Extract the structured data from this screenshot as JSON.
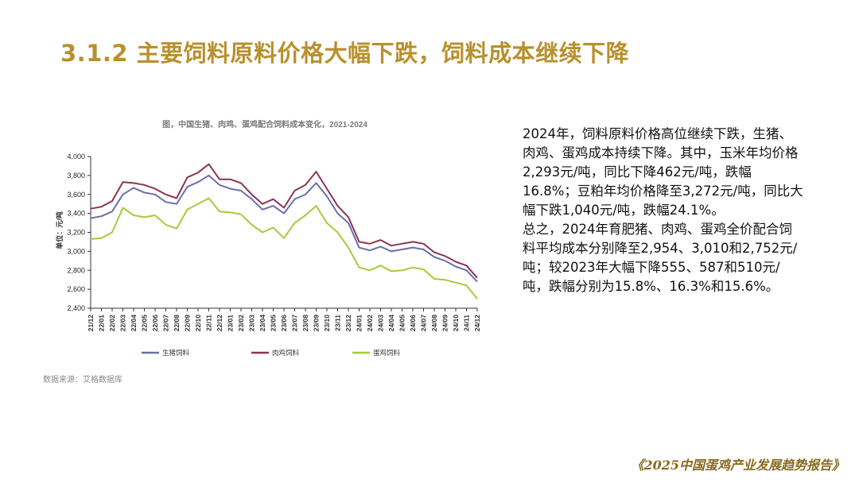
{
  "page": {
    "title": "3.1.2 主要饲料原料价格大幅下跌，饲料成本继续下降",
    "source": "数据来源：艾格数据库",
    "footer": "《2025中国蛋鸡产业发展趋势报告》",
    "paragraphs": [
      "2024年，饲料原料价格高位继续下跌，生猪、肉鸡、蛋鸡成本持续下降。其中，玉米年均价格2,293元/吨，同比下降462元/吨，跌幅16.8%；豆粕年均价格降至3,272元/吨，同比大幅下跌1,040元/吨，跌幅24.1%。",
      "总之，2024年育肥猪、肉鸡、蛋鸡全价配合饲料平均成本分别降至2,954、3,010和2,752元/吨；较2023年大幅下降555、587和510元/吨，跌幅分别为15.8%、16.3%和15.6%。"
    ]
  },
  "chart_data": {
    "type": "line",
    "title": "图，中国生猪、肉鸡、蛋鸡配合饲料成本变化，2021-2024",
    "ylabel": "单位：元/吨",
    "ylim": [
      2400,
      4000
    ],
    "yticks": [
      4000,
      3800,
      3600,
      3400,
      3200,
      3000,
      2800,
      2600,
      2400
    ],
    "ytick_labels": [
      "4,000",
      "3,800",
      "3,600",
      "3,400",
      "3,200",
      "3,000",
      "2,800",
      "2,600",
      "2,400"
    ],
    "xtick_labels": [
      "21/12",
      "22/01",
      "22/02",
      "22/03",
      "22/04",
      "22/05",
      "22/06",
      "22/07",
      "22/08",
      "22/09",
      "22/10",
      "22/11",
      "22/12",
      "23/01",
      "23/02",
      "23/03",
      "23/04",
      "23/05",
      "23/06",
      "23/07",
      "23/08",
      "23/09",
      "23/10",
      "23/11",
      "23/12",
      "24/01",
      "24/02",
      "24/03",
      "24/04",
      "24/05",
      "24/06",
      "24/07",
      "24/08",
      "24/09",
      "24/10",
      "24/11",
      "24/12"
    ],
    "grid": false,
    "legend_position": "bottom",
    "series": [
      {
        "name": "生猪饲料",
        "color": "#6b6fa8",
        "values": [
          3350,
          3370,
          3420,
          3600,
          3670,
          3620,
          3600,
          3520,
          3500,
          3680,
          3730,
          3800,
          3700,
          3660,
          3640,
          3550,
          3440,
          3480,
          3400,
          3550,
          3600,
          3720,
          3580,
          3400,
          3300,
          3040,
          3010,
          3050,
          3000,
          3020,
          3040,
          3020,
          2940,
          2900,
          2840,
          2800,
          2680
        ]
      },
      {
        "name": "肉鸡饲料",
        "color": "#8a3550",
        "values": [
          3450,
          3470,
          3530,
          3730,
          3720,
          3700,
          3660,
          3600,
          3560,
          3780,
          3830,
          3920,
          3760,
          3760,
          3720,
          3600,
          3500,
          3550,
          3460,
          3640,
          3700,
          3840,
          3660,
          3480,
          3360,
          3100,
          3080,
          3120,
          3060,
          3080,
          3100,
          3080,
          2990,
          2950,
          2890,
          2850,
          2720
        ]
      },
      {
        "name": "蛋鸡饲料",
        "color": "#a5cb3a",
        "values": [
          3130,
          3140,
          3200,
          3460,
          3380,
          3360,
          3380,
          3280,
          3240,
          3440,
          3500,
          3560,
          3420,
          3410,
          3390,
          3280,
          3200,
          3250,
          3140,
          3300,
          3380,
          3480,
          3300,
          3200,
          3040,
          2830,
          2800,
          2850,
          2790,
          2800,
          2830,
          2810,
          2710,
          2700,
          2670,
          2640,
          2500
        ]
      }
    ]
  }
}
